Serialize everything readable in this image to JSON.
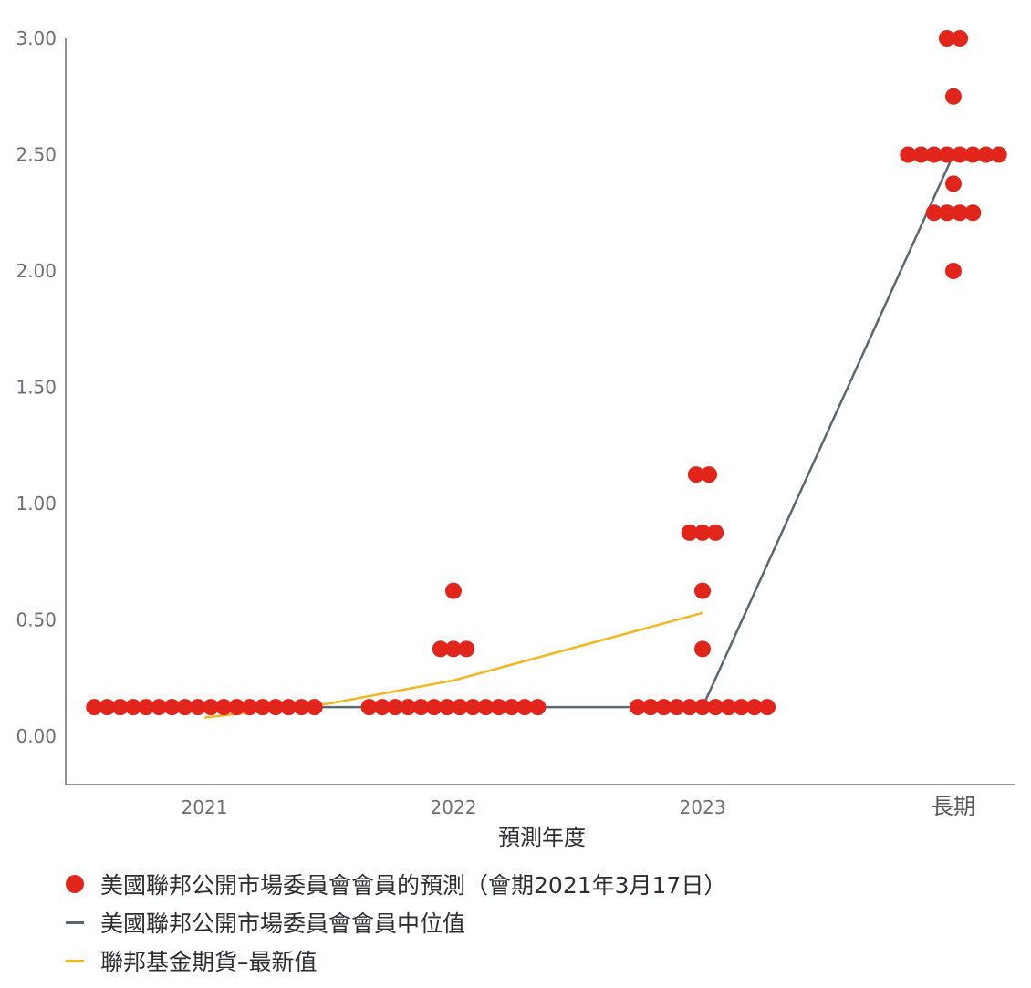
{
  "colors": {
    "dots": "#e1251b",
    "median": "#5c6670",
    "futures": "#f3b61f",
    "axis": "#6b6f73"
  },
  "chart_data": {
    "type": "scatter",
    "categories": [
      "2021",
      "2022",
      "2023",
      "長期"
    ],
    "xlabel": "預測年度",
    "ylabel": "",
    "ylim": [
      -0.2,
      3.0
    ],
    "yticks": [
      "0.00",
      "0.50",
      "1.00",
      "1.50",
      "2.00",
      "2.50",
      "3.00"
    ],
    "series": [
      {
        "name": "美國聯邦公開市場委員會會員的預測（會期2021年3月17日）",
        "kind": "dots",
        "points": [
          {
            "category": "2021",
            "value": 0.125,
            "count": 18
          },
          {
            "category": "2022",
            "value": 0.625,
            "count": 1
          },
          {
            "category": "2022",
            "value": 0.375,
            "count": 3
          },
          {
            "category": "2022",
            "value": 0.125,
            "count": 14
          },
          {
            "category": "2023",
            "value": 1.125,
            "count": 2
          },
          {
            "category": "2023",
            "value": 0.875,
            "count": 3
          },
          {
            "category": "2023",
            "value": 0.625,
            "count": 1
          },
          {
            "category": "2023",
            "value": 0.375,
            "count": 1
          },
          {
            "category": "2023",
            "value": 0.125,
            "count": 11
          },
          {
            "category": "長期",
            "value": 3.0,
            "count": 2
          },
          {
            "category": "長期",
            "value": 2.75,
            "count": 1
          },
          {
            "category": "長期",
            "value": 2.5,
            "count": 8
          },
          {
            "category": "長期",
            "value": 2.375,
            "count": 1
          },
          {
            "category": "長期",
            "value": 2.25,
            "count": 4
          },
          {
            "category": "長期",
            "value": 2.0,
            "count": 1
          }
        ]
      },
      {
        "name": "美國聯邦公開市場委員會會員中位值",
        "kind": "line",
        "x": [
          "2021",
          "2022",
          "2023",
          "長期"
        ],
        "values": [
          0.125,
          0.125,
          0.125,
          2.5
        ]
      },
      {
        "name": "聯邦基金期貨–最新值",
        "kind": "line",
        "x": [
          2021.0,
          2021.5,
          2022.0,
          2023.0
        ],
        "values": [
          0.08,
          0.14,
          0.24,
          0.53
        ]
      }
    ],
    "legend_position": "bottom-left",
    "grid": false
  }
}
